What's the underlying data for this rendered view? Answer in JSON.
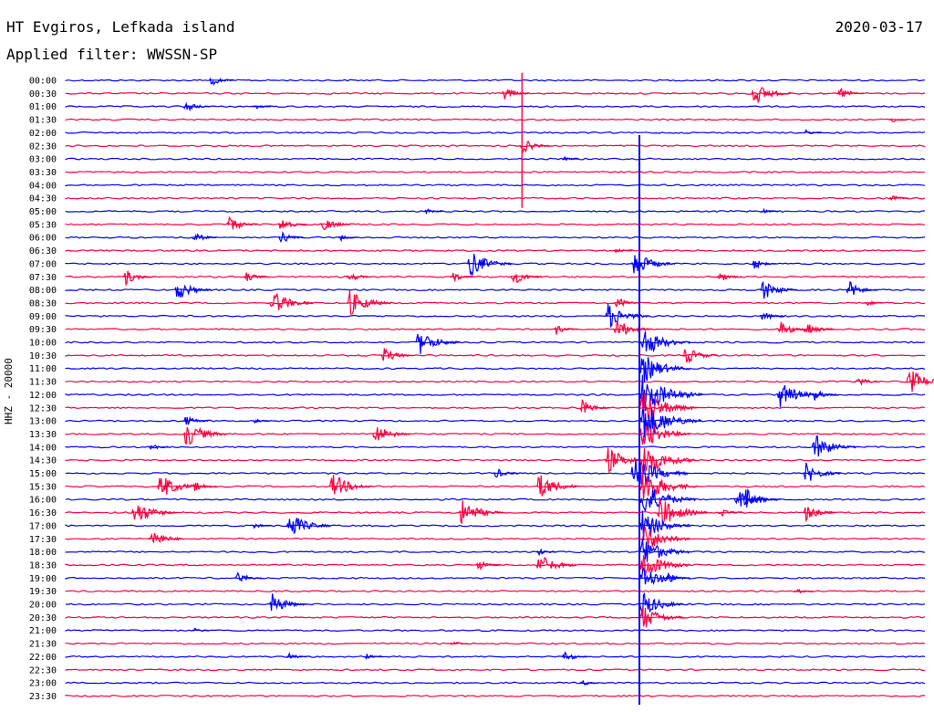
{
  "header": {
    "station": "HT Evgiros, Lefkada island",
    "filter": "Applied filter: WWSSN-SP",
    "date": "2020-03-17"
  },
  "chart_data": {
    "type": "helicorder",
    "channel_label": "HHZ - 20000",
    "colors": {
      "odd": "#0000ff",
      "even": "#ff0040"
    },
    "rows": [
      {
        "label": "00:00",
        "events": [
          [
            17,
            1.0
          ]
        ]
      },
      {
        "label": "00:30",
        "events": [
          [
            80,
            2.2
          ],
          [
            90,
            1.2
          ],
          [
            51,
            1.2
          ]
        ]
      },
      {
        "label": "01:00",
        "events": [
          [
            14,
            1.2
          ],
          [
            22,
            0.5
          ]
        ]
      },
      {
        "label": "01:30",
        "events": [
          [
            96,
            0.5
          ]
        ]
      },
      {
        "label": "02:00",
        "events": [
          [
            86,
            0.5
          ]
        ]
      },
      {
        "label": "02:30",
        "events": [
          [
            53,
            1.5
          ]
        ]
      },
      {
        "label": "03:00",
        "events": [
          [
            58,
            0.4
          ]
        ]
      },
      {
        "label": "03:30",
        "events": []
      },
      {
        "label": "04:00",
        "events": []
      },
      {
        "label": "04:30",
        "events": [
          [
            96,
            0.6
          ]
        ]
      },
      {
        "label": "05:00",
        "events": [
          [
            42,
            0.5
          ],
          [
            81,
            0.5
          ]
        ]
      },
      {
        "label": "05:30",
        "events": [
          [
            19,
            1.5
          ],
          [
            25,
            1.3
          ],
          [
            30,
            1.4
          ]
        ]
      },
      {
        "label": "06:00",
        "events": [
          [
            15,
            1.0
          ],
          [
            25,
            1.2
          ],
          [
            32,
            0.6
          ]
        ]
      },
      {
        "label": "06:30",
        "events": [
          [
            64,
            0.5
          ]
        ]
      },
      {
        "label": "07:00",
        "events": [
          [
            47,
            2.5
          ],
          [
            66,
            2.5
          ],
          [
            80,
            1.0
          ]
        ]
      },
      {
        "label": "07:30",
        "events": [
          [
            7,
            1.5
          ],
          [
            21,
            1.0
          ],
          [
            33,
            1.0
          ],
          [
            45,
            1.0
          ],
          [
            52,
            1.5
          ],
          [
            76,
            1.0
          ]
        ]
      },
      {
        "label": "08:00",
        "events": [
          [
            13,
            2.0
          ],
          [
            81,
            2.0
          ],
          [
            91,
            1.6
          ]
        ]
      },
      {
        "label": "08:30",
        "events": [
          [
            24,
            2.5
          ],
          [
            33,
            2.5
          ],
          [
            64,
            1.2
          ],
          [
            93,
            0.6
          ]
        ]
      },
      {
        "label": "09:00",
        "events": [
          [
            63,
            2.5
          ],
          [
            81,
            1.0
          ]
        ]
      },
      {
        "label": "09:30",
        "events": [
          [
            57,
            1.0
          ],
          [
            64,
            2.0
          ],
          [
            83,
            1.5
          ],
          [
            86,
            1.5
          ]
        ]
      },
      {
        "label": "10:00",
        "events": [
          [
            41,
            2.5
          ],
          [
            67,
            3.0
          ]
        ]
      },
      {
        "label": "10:30",
        "events": [
          [
            37,
            1.5
          ],
          [
            72,
            1.8
          ]
        ]
      },
      {
        "label": "11:00",
        "events": [
          [
            67,
            3.0
          ]
        ]
      },
      {
        "label": "11:30",
        "events": [
          [
            92,
            1.0
          ],
          [
            98,
            2.5
          ]
        ]
      },
      {
        "label": "12:00",
        "events": [
          [
            67,
            4.0
          ],
          [
            83,
            2.5
          ],
          [
            87,
            1.2
          ]
        ]
      },
      {
        "label": "12:30",
        "events": [
          [
            60,
            1.5
          ],
          [
            67,
            3.5
          ]
        ]
      },
      {
        "label": "13:00",
        "events": [
          [
            14,
            1.0
          ],
          [
            22,
            0.5
          ],
          [
            67,
            4.0
          ]
        ]
      },
      {
        "label": "13:30",
        "events": [
          [
            14,
            2.5
          ],
          [
            36,
            2.0
          ],
          [
            67,
            3.0
          ]
        ]
      },
      {
        "label": "14:00",
        "events": [
          [
            10,
            0.6
          ],
          [
            87,
            2.5
          ]
        ]
      },
      {
        "label": "14:30",
        "events": [
          [
            63,
            2.5
          ],
          [
            67,
            3.5
          ]
        ]
      },
      {
        "label": "15:00",
        "events": [
          [
            50,
            1.0
          ],
          [
            66,
            3.5
          ],
          [
            86,
            2.0
          ]
        ]
      },
      {
        "label": "15:30",
        "events": [
          [
            11,
            2.5
          ],
          [
            15,
            1.0
          ],
          [
            31,
            2.5
          ],
          [
            55,
            2.5
          ],
          [
            67,
            3.5
          ]
        ]
      },
      {
        "label": "16:00",
        "events": [
          [
            78,
            2.0
          ],
          [
            79,
            2.0
          ],
          [
            67,
            3.5
          ]
        ]
      },
      {
        "label": "16:30",
        "events": [
          [
            8,
            2.5
          ],
          [
            46,
            2.5
          ],
          [
            69,
            3.0
          ],
          [
            76,
            1.0
          ],
          [
            86,
            1.6
          ]
        ]
      },
      {
        "label": "17:00",
        "events": [
          [
            26,
            2.5
          ],
          [
            22,
            0.6
          ],
          [
            67,
            3.0
          ]
        ]
      },
      {
        "label": "17:30",
        "events": [
          [
            10,
            1.8
          ],
          [
            67,
            3.0
          ]
        ]
      },
      {
        "label": "18:00",
        "events": [
          [
            55,
            0.6
          ],
          [
            67,
            3.0
          ]
        ]
      },
      {
        "label": "18:30",
        "events": [
          [
            48,
            1.0
          ],
          [
            55,
            2.2
          ],
          [
            67,
            3.0
          ]
        ]
      },
      {
        "label": "19:00",
        "events": [
          [
            20,
            1.2
          ],
          [
            70,
            1.0
          ],
          [
            67,
            2.5
          ]
        ]
      },
      {
        "label": "19:30",
        "events": [
          [
            85,
            0.5
          ]
        ]
      },
      {
        "label": "20:00",
        "events": [
          [
            24,
            2.0
          ],
          [
            67,
            2.5
          ]
        ]
      },
      {
        "label": "20:30",
        "events": [
          [
            67,
            2.5
          ]
        ]
      },
      {
        "label": "21:00",
        "events": [
          [
            15,
            0.4
          ]
        ]
      },
      {
        "label": "21:30",
        "events": [
          [
            45,
            0.5
          ]
        ]
      },
      {
        "label": "22:00",
        "events": [
          [
            26,
            0.7
          ],
          [
            35,
            0.5
          ],
          [
            58,
            1.0
          ]
        ]
      },
      {
        "label": "22:30",
        "events": []
      },
      {
        "label": "23:00",
        "events": [
          [
            60,
            0.6
          ]
        ]
      },
      {
        "label": "23:30",
        "events": []
      }
    ],
    "large_quake": {
      "row": "09:00",
      "x_fraction": 0.66,
      "height_rows": 29
    },
    "spike": {
      "row": "02:30",
      "x_fraction": 0.53,
      "height_rows": 10
    }
  }
}
